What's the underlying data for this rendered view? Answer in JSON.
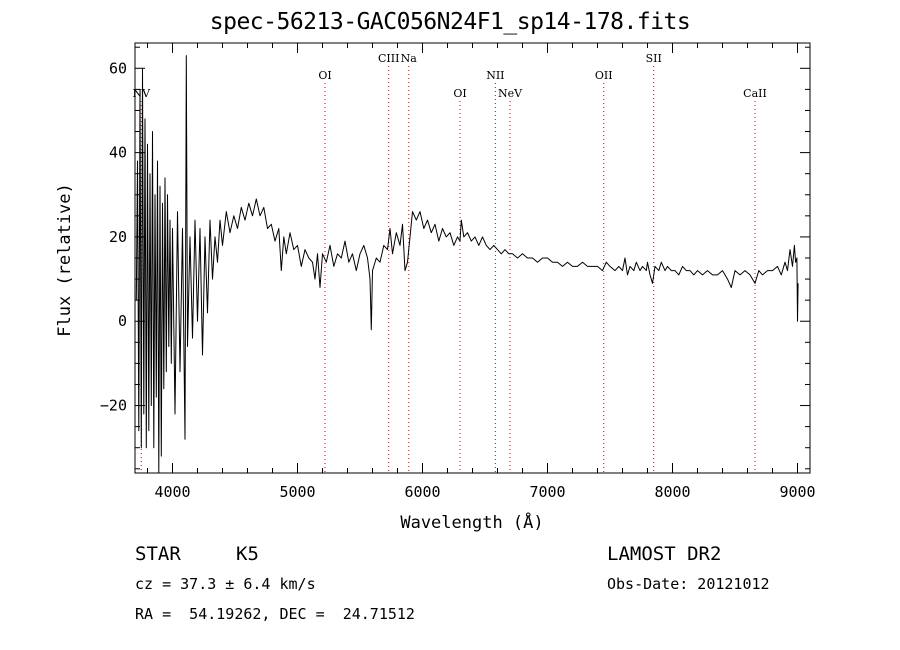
{
  "chart_data": {
    "type": "line",
    "title": "spec-56213-GAC056N24F1_sp14-178.fits",
    "xlabel": "Wavelength (Å)",
    "ylabel": "Flux (relative)",
    "xlim": [
      3700,
      9100
    ],
    "ylim": [
      -36,
      66
    ],
    "xticks": [
      4000,
      5000,
      6000,
      7000,
      8000,
      9000
    ],
    "yticks": [
      -20,
      0,
      20,
      40,
      60
    ],
    "grid": false,
    "line_color": "#000000",
    "marker_color": "#cc0000",
    "spectral_lines": [
      {
        "label": "NV",
        "wavelength": 3750,
        "tier": 3
      },
      {
        "label": "OI",
        "wavelength": 5220,
        "tier": 2
      },
      {
        "label": "CIII",
        "wavelength": 5730,
        "tier": 1
      },
      {
        "label": "Na",
        "wavelength": 5890,
        "tier": 1
      },
      {
        "label": "OI",
        "wavelength": 6300,
        "tier": 3
      },
      {
        "label": "NII",
        "wavelength": 6583,
        "tier": 2
      },
      {
        "label": "NeV",
        "wavelength": 6700,
        "tier": 3
      },
      {
        "label": "OII",
        "wavelength": 7450,
        "tier": 2
      },
      {
        "label": "SII",
        "wavelength": 7850,
        "tier": 1
      },
      {
        "label": "CaII",
        "wavelength": 8660,
        "tier": 3
      }
    ],
    "series": [
      {
        "values": [
          [
            3710,
            5
          ],
          [
            3720,
            38
          ],
          [
            3730,
            -26
          ],
          [
            3740,
            55
          ],
          [
            3750,
            -30
          ],
          [
            3760,
            60
          ],
          [
            3770,
            -22
          ],
          [
            3780,
            48
          ],
          [
            3790,
            -30
          ],
          [
            3800,
            42
          ],
          [
            3810,
            -26
          ],
          [
            3820,
            35
          ],
          [
            3830,
            -20
          ],
          [
            3840,
            45
          ],
          [
            3850,
            -30
          ],
          [
            3860,
            30
          ],
          [
            3870,
            -18
          ],
          [
            3880,
            38
          ],
          [
            3890,
            -36
          ],
          [
            3900,
            32
          ],
          [
            3910,
            -32
          ],
          [
            3920,
            28
          ],
          [
            3930,
            -16
          ],
          [
            3940,
            34
          ],
          [
            3950,
            -12
          ],
          [
            3960,
            30
          ],
          [
            3970,
            -6
          ],
          [
            3980,
            24
          ],
          [
            3990,
            -10
          ],
          [
            4000,
            22
          ],
          [
            4020,
            -22
          ],
          [
            4040,
            26
          ],
          [
            4060,
            -12
          ],
          [
            4080,
            22
          ],
          [
            4100,
            -28
          ],
          [
            4110,
            63
          ],
          [
            4120,
            -6
          ],
          [
            4140,
            20
          ],
          [
            4160,
            -4
          ],
          [
            4180,
            24
          ],
          [
            4200,
            0
          ],
          [
            4220,
            22
          ],
          [
            4240,
            -8
          ],
          [
            4260,
            20
          ],
          [
            4280,
            2
          ],
          [
            4300,
            24
          ],
          [
            4320,
            10
          ],
          [
            4340,
            20
          ],
          [
            4360,
            14
          ],
          [
            4380,
            24
          ],
          [
            4400,
            18
          ],
          [
            4430,
            26
          ],
          [
            4460,
            21
          ],
          [
            4490,
            25
          ],
          [
            4520,
            22
          ],
          [
            4550,
            27
          ],
          [
            4580,
            24
          ],
          [
            4610,
            28
          ],
          [
            4640,
            25
          ],
          [
            4670,
            29
          ],
          [
            4700,
            25
          ],
          [
            4730,
            27
          ],
          [
            4760,
            22
          ],
          [
            4790,
            23
          ],
          [
            4820,
            19
          ],
          [
            4850,
            22
          ],
          [
            4870,
            12
          ],
          [
            4890,
            20
          ],
          [
            4910,
            16
          ],
          [
            4940,
            21
          ],
          [
            4970,
            17
          ],
          [
            5000,
            18
          ],
          [
            5030,
            13
          ],
          [
            5060,
            17
          ],
          [
            5090,
            15
          ],
          [
            5120,
            14
          ],
          [
            5140,
            10
          ],
          [
            5160,
            16
          ],
          [
            5180,
            8
          ],
          [
            5200,
            16
          ],
          [
            5230,
            14
          ],
          [
            5260,
            18
          ],
          [
            5290,
            13
          ],
          [
            5320,
            16
          ],
          [
            5350,
            15
          ],
          [
            5380,
            19
          ],
          [
            5410,
            14
          ],
          [
            5440,
            16
          ],
          [
            5470,
            12
          ],
          [
            5500,
            16
          ],
          [
            5530,
            18
          ],
          [
            5560,
            15
          ],
          [
            5580,
            10
          ],
          [
            5590,
            -2
          ],
          [
            5600,
            12
          ],
          [
            5630,
            15
          ],
          [
            5660,
            14
          ],
          [
            5690,
            18
          ],
          [
            5720,
            17
          ],
          [
            5740,
            22
          ],
          [
            5760,
            16
          ],
          [
            5790,
            21
          ],
          [
            5820,
            18
          ],
          [
            5840,
            23
          ],
          [
            5860,
            12
          ],
          [
            5880,
            14
          ],
          [
            5900,
            20
          ],
          [
            5920,
            26
          ],
          [
            5950,
            24
          ],
          [
            5980,
            26
          ],
          [
            6010,
            22
          ],
          [
            6040,
            24
          ],
          [
            6070,
            21
          ],
          [
            6100,
            23
          ],
          [
            6130,
            19
          ],
          [
            6160,
            22
          ],
          [
            6190,
            20
          ],
          [
            6220,
            21
          ],
          [
            6250,
            18
          ],
          [
            6280,
            20
          ],
          [
            6300,
            19
          ],
          [
            6310,
            24
          ],
          [
            6330,
            20
          ],
          [
            6360,
            21
          ],
          [
            6390,
            19
          ],
          [
            6420,
            20
          ],
          [
            6450,
            18
          ],
          [
            6480,
            20
          ],
          [
            6510,
            18
          ],
          [
            6540,
            17
          ],
          [
            6570,
            18
          ],
          [
            6600,
            17
          ],
          [
            6630,
            16
          ],
          [
            6660,
            17
          ],
          [
            6690,
            16
          ],
          [
            6720,
            16
          ],
          [
            6760,
            15
          ],
          [
            6800,
            16
          ],
          [
            6840,
            15
          ],
          [
            6880,
            15
          ],
          [
            6920,
            14
          ],
          [
            6960,
            15
          ],
          [
            7000,
            15
          ],
          [
            7040,
            14
          ],
          [
            7080,
            14
          ],
          [
            7120,
            13
          ],
          [
            7160,
            14
          ],
          [
            7200,
            13
          ],
          [
            7240,
            13
          ],
          [
            7280,
            14
          ],
          [
            7320,
            13
          ],
          [
            7360,
            13
          ],
          [
            7400,
            13
          ],
          [
            7440,
            12
          ],
          [
            7470,
            14
          ],
          [
            7500,
            13
          ],
          [
            7540,
            12
          ],
          [
            7570,
            13
          ],
          [
            7600,
            12
          ],
          [
            7620,
            15
          ],
          [
            7640,
            11
          ],
          [
            7660,
            13
          ],
          [
            7690,
            12
          ],
          [
            7710,
            14
          ],
          [
            7740,
            12
          ],
          [
            7760,
            13
          ],
          [
            7790,
            12
          ],
          [
            7800,
            14
          ],
          [
            7820,
            11
          ],
          [
            7840,
            9
          ],
          [
            7860,
            13
          ],
          [
            7890,
            12
          ],
          [
            7910,
            14
          ],
          [
            7940,
            12
          ],
          [
            7960,
            13
          ],
          [
            7990,
            12
          ],
          [
            8020,
            12
          ],
          [
            8050,
            11
          ],
          [
            8080,
            13
          ],
          [
            8110,
            12
          ],
          [
            8140,
            12
          ],
          [
            8170,
            11
          ],
          [
            8200,
            12
          ],
          [
            8240,
            11
          ],
          [
            8280,
            12
          ],
          [
            8320,
            11
          ],
          [
            8360,
            11
          ],
          [
            8400,
            12
          ],
          [
            8440,
            10
          ],
          [
            8470,
            8
          ],
          [
            8500,
            12
          ],
          [
            8540,
            11
          ],
          [
            8580,
            12
          ],
          [
            8620,
            11
          ],
          [
            8660,
            9
          ],
          [
            8690,
            12
          ],
          [
            8720,
            11
          ],
          [
            8760,
            12
          ],
          [
            8800,
            12
          ],
          [
            8840,
            13
          ],
          [
            8870,
            11
          ],
          [
            8900,
            14
          ],
          [
            8920,
            12
          ],
          [
            8940,
            17
          ],
          [
            8960,
            13
          ],
          [
            8975,
            18
          ],
          [
            8985,
            14
          ],
          [
            8995,
            15
          ],
          [
            9000,
            0
          ],
          [
            9005,
            9
          ]
        ]
      }
    ]
  },
  "info": {
    "object_class": "STAR",
    "subclass": "K5",
    "cz": "cz = 37.3 ± 6.4 km/s",
    "coords": "RA =  54.19262, DEC =  24.71512",
    "survey": "LAMOST DR2",
    "obs_date": "Obs-Date: 20121012"
  }
}
